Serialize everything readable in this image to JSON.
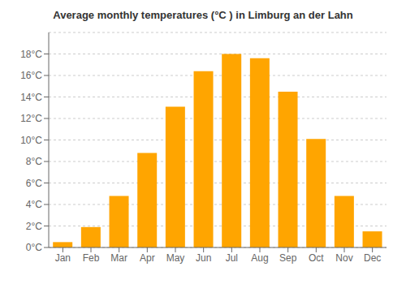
{
  "chart_data": {
    "type": "bar",
    "title": "Average monthly temperatures (°C ) in Limburg an der Lahn",
    "categories": [
      "Jan",
      "Feb",
      "Mar",
      "Apr",
      "May",
      "Jun",
      "Jul",
      "Aug",
      "Sep",
      "Oct",
      "Nov",
      "Dec"
    ],
    "values": [
      0.5,
      1.9,
      4.8,
      8.8,
      13.1,
      16.4,
      18.0,
      17.6,
      14.5,
      10.1,
      4.8,
      1.5
    ],
    "color": "#FFA500",
    "ylim": [
      0,
      20
    ],
    "yticks": [
      {
        "value": 0,
        "label": "0°C"
      },
      {
        "value": 2,
        "label": "2°C"
      },
      {
        "value": 4,
        "label": "4°C"
      },
      {
        "value": 6,
        "label": "6°C"
      },
      {
        "value": 8,
        "label": "8°C"
      },
      {
        "value": 10,
        "label": "10°C"
      },
      {
        "value": 12,
        "label": "12°C"
      },
      {
        "value": 14,
        "label": "14°C"
      },
      {
        "value": 16,
        "label": "16°C"
      },
      {
        "value": 18,
        "label": "18°C"
      }
    ],
    "grid": true
  }
}
